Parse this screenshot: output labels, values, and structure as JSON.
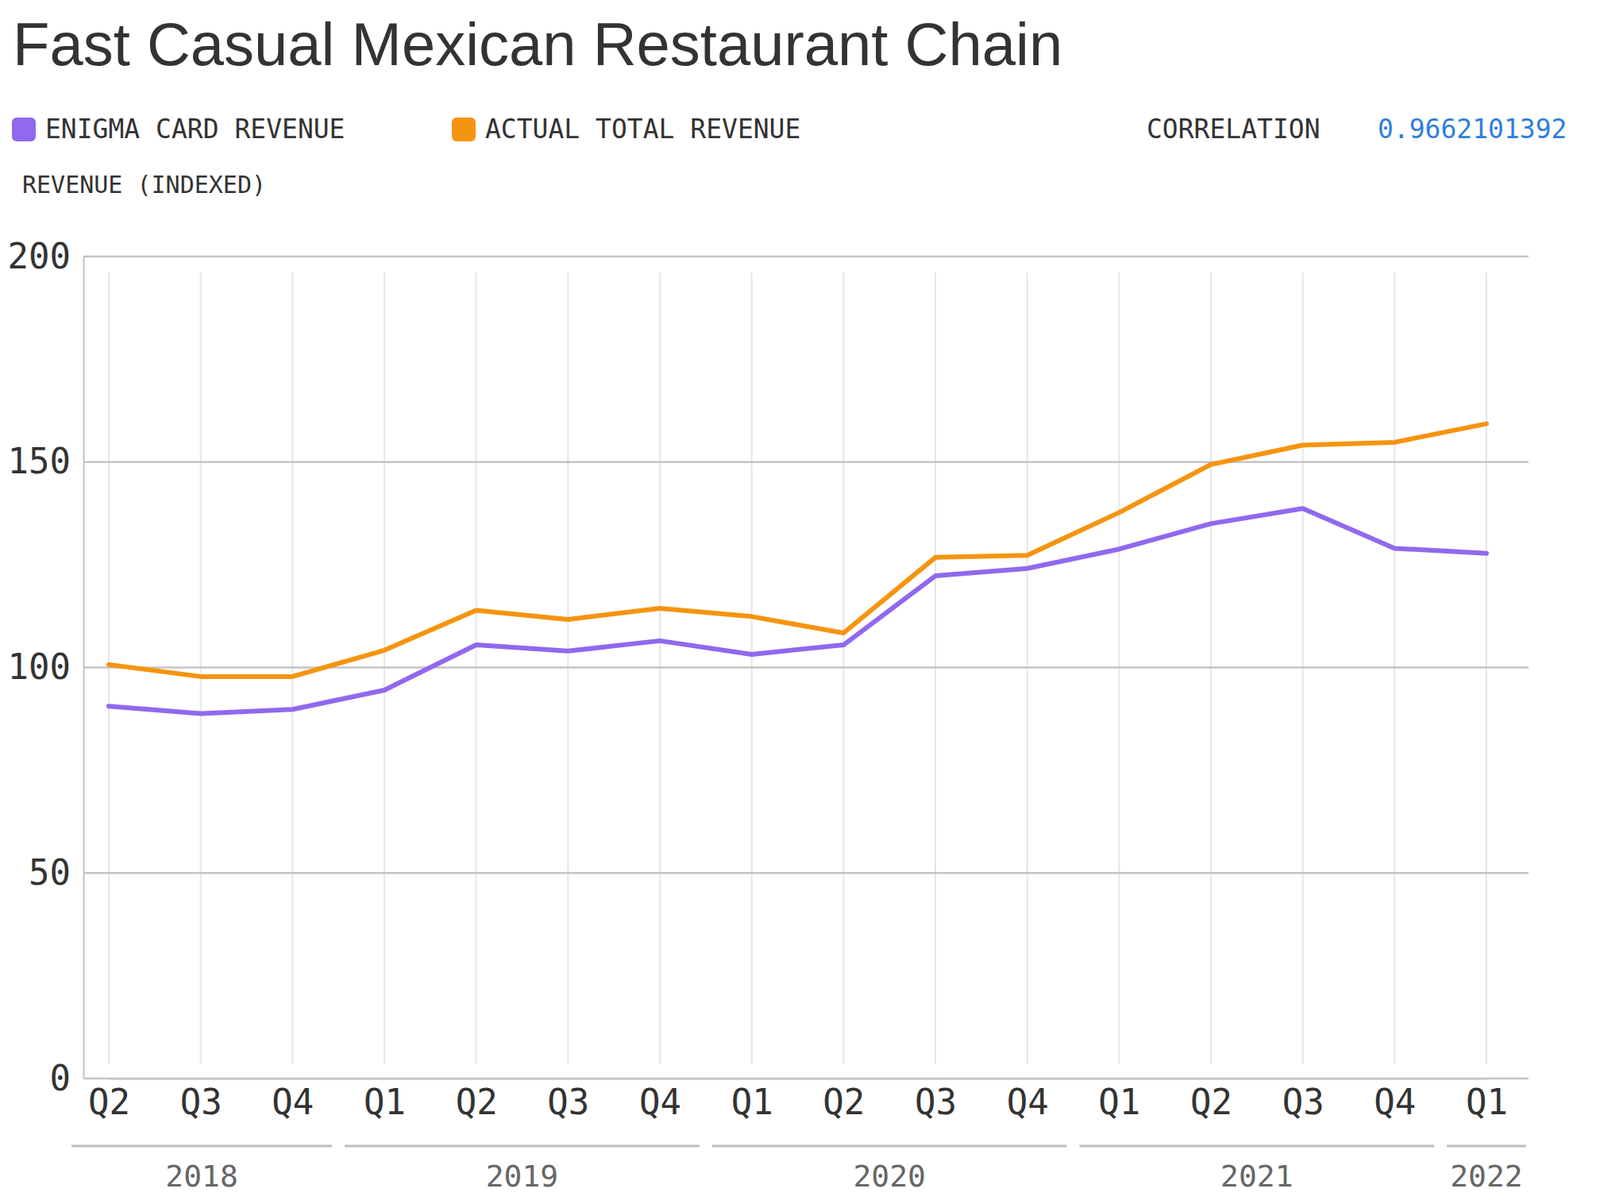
{
  "chart_data": {
    "type": "line",
    "title": "Fast Casual Mexican Restaurant Chain",
    "y_label": "REVENUE (INDEXED)",
    "annotation": {
      "label": "CORRELATION",
      "value": 0.9662101392
    },
    "categories": [
      "Q2",
      "Q3",
      "Q4",
      "Q1",
      "Q2",
      "Q3",
      "Q4",
      "Q1",
      "Q2",
      "Q3",
      "Q4",
      "Q1",
      "Q2",
      "Q3",
      "Q4",
      "Q1"
    ],
    "years": [
      "2018",
      "2018",
      "2018",
      "2019",
      "2019",
      "2019",
      "2019",
      "2020",
      "2020",
      "2020",
      "2020",
      "2021",
      "2021",
      "2021",
      "2021",
      "2022"
    ],
    "series": [
      {
        "name": "ENIGMA CARD REVENUE",
        "color": "#9069ee",
        "values": [
          90.6,
          88.8,
          89.8,
          94.5,
          105.5,
          104,
          106.5,
          103.2,
          105.5,
          122.3,
          124.1,
          128.8,
          135,
          138.7,
          129,
          127.8
        ]
      },
      {
        "name": "ACTUAL TOTAL REVENUE",
        "color": "#f5940f",
        "values": [
          100.7,
          97.8,
          97.8,
          104.2,
          113.9,
          111.7,
          114.4,
          112.4,
          108.4,
          126.8,
          127.3,
          137.7,
          149.4,
          154.1,
          154.8,
          159.3
        ]
      }
    ],
    "ylim": [
      0,
      200
    ],
    "yticks": [
      0,
      50,
      100,
      150,
      200
    ],
    "grid": true,
    "legend": "top-left"
  }
}
